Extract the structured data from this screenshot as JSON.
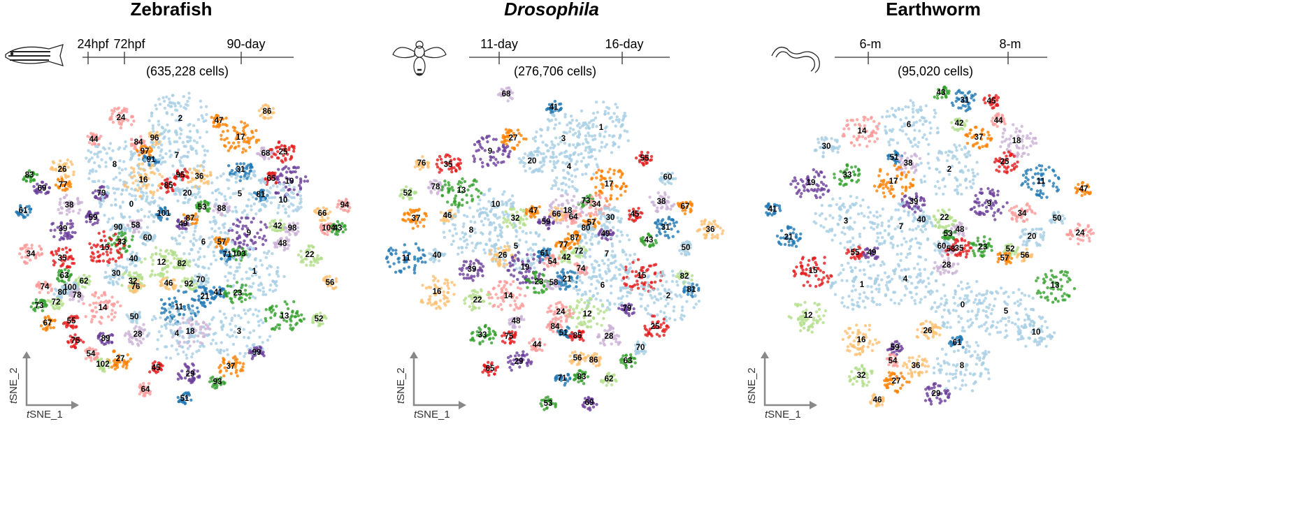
{
  "panels": [
    {
      "title": "Zebrafish",
      "timeline": [
        "24hpf",
        "72hpf",
        "90-day"
      ],
      "cells": "(635,228 cells)",
      "x_axis": {
        "italic": "t",
        "rest": "SNE_1"
      },
      "y_axis": {
        "italic": "t",
        "rest": "SNE_2"
      },
      "clusters": [
        "2",
        "47",
        "86",
        "24",
        "17",
        "44",
        "84",
        "96",
        "68",
        "25",
        "97",
        "91",
        "7",
        "8",
        "31",
        "26",
        "95",
        "36",
        "65",
        "19",
        "83",
        "16",
        "77",
        "85",
        "20",
        "5",
        "81",
        "69",
        "79",
        "10",
        "94",
        "38",
        "0",
        "53",
        "88",
        "61",
        "101",
        "87",
        "66",
        "59",
        "49",
        "42",
        "98",
        "104",
        "43",
        "90",
        "58",
        "39",
        "9",
        "60",
        "33",
        "6",
        "57",
        "48",
        "15",
        "22",
        "71",
        "103",
        "34",
        "35",
        "40",
        "12",
        "82",
        "1",
        "30",
        "63",
        "62",
        "32",
        "70",
        "46",
        "92",
        "76",
        "74",
        "100",
        "80",
        "78",
        "41",
        "21",
        "23",
        "56",
        "73",
        "72",
        "14",
        "11",
        "13",
        "50",
        "55",
        "67",
        "52",
        "18",
        "4",
        "3",
        "28",
        "75",
        "89",
        "54",
        "99",
        "27",
        "102",
        "45",
        "37",
        "29",
        "93",
        "64",
        "51"
      ]
    },
    {
      "title": "Drosophila",
      "timeline": [
        "11-day",
        "16-day"
      ],
      "cells": "(276,706 cells)",
      "x_axis": {
        "italic": "t",
        "rest": "SNE_1"
      },
      "y_axis": {
        "italic": "t",
        "rest": "SNE_2"
      },
      "clusters": [
        "68",
        "41",
        "1",
        "3",
        "27",
        "9",
        "20",
        "4",
        "55",
        "76",
        "35",
        "60",
        "78",
        "13",
        "17",
        "52",
        "38",
        "67",
        "73",
        "34",
        "10",
        "47",
        "18",
        "66",
        "64",
        "45",
        "30",
        "46",
        "37",
        "32",
        "59",
        "57",
        "31",
        "36",
        "80",
        "49",
        "8",
        "87",
        "43",
        "77",
        "72",
        "50",
        "5",
        "61",
        "42",
        "7",
        "40",
        "11",
        "26",
        "54",
        "19",
        "74",
        "39",
        "15",
        "82",
        "23",
        "58",
        "21",
        "6",
        "81",
        "16",
        "2",
        "14",
        "22",
        "12",
        "79",
        "24",
        "48",
        "84",
        "51",
        "85",
        "25",
        "33",
        "75",
        "28",
        "44",
        "70",
        "56",
        "86",
        "29",
        "63",
        "65",
        "83",
        "71",
        "62",
        "53",
        "69"
      ]
    },
    {
      "title": "Earthworm",
      "timeline": [
        "6-m",
        "8-m"
      ],
      "cells": "(95,020 cells)",
      "x_axis": {
        "italic": "t",
        "rest": "SNE_1"
      },
      "y_axis": {
        "italic": "t",
        "rest": "SNE_2"
      },
      "clusters": [
        "43",
        "31",
        "45",
        "6",
        "42",
        "44",
        "14",
        "37",
        "18",
        "30",
        "51",
        "38",
        "25",
        "33",
        "2",
        "17",
        "19",
        "11",
        "47",
        "39",
        "9",
        "34",
        "41",
        "40",
        "22",
        "50",
        "3",
        "7",
        "48",
        "53",
        "24",
        "20",
        "21",
        "60",
        "58",
        "35",
        "23",
        "52",
        "55",
        "49",
        "56",
        "57",
        "28",
        "15",
        "1",
        "4",
        "13",
        "0",
        "5",
        "12",
        "26",
        "10",
        "16",
        "61",
        "59",
        "8",
        "54",
        "36",
        "32",
        "27",
        "29",
        "46"
      ]
    }
  ]
}
